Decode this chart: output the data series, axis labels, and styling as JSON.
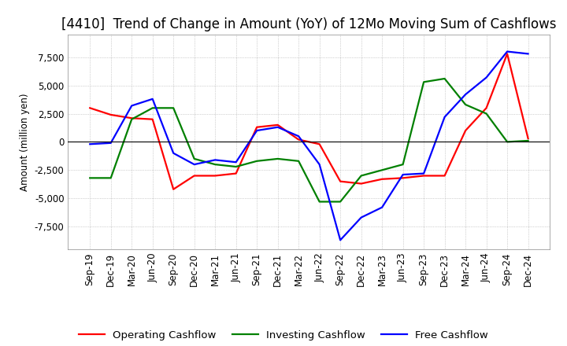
{
  "title": "[4410]  Trend of Change in Amount (YoY) of 12Mo Moving Sum of Cashflows",
  "ylabel": "Amount (million yen)",
  "ylim": [
    -9500,
    9500
  ],
  "yticks": [
    -7500,
    -5000,
    -2500,
    0,
    2500,
    5000,
    7500
  ],
  "x_labels": [
    "Sep-19",
    "Dec-19",
    "Mar-20",
    "Jun-20",
    "Sep-20",
    "Dec-20",
    "Mar-21",
    "Jun-21",
    "Sep-21",
    "Dec-21",
    "Mar-22",
    "Jun-22",
    "Sep-22",
    "Dec-22",
    "Mar-23",
    "Jun-23",
    "Sep-23",
    "Dec-23",
    "Mar-24",
    "Jun-24",
    "Sep-24",
    "Dec-24"
  ],
  "operating": [
    3000,
    2400,
    2100,
    2000,
    -4200,
    -3000,
    -3000,
    -2800,
    1300,
    1500,
    200,
    -200,
    -3500,
    -3700,
    -3300,
    -3200,
    -3000,
    -3000,
    1000,
    3000,
    7800,
    300
  ],
  "investing": [
    -3200,
    -3200,
    2000,
    3000,
    3000,
    -1500,
    -2000,
    -2200,
    -1700,
    -1500,
    -1700,
    -5300,
    -5300,
    -3000,
    -2500,
    -2000,
    5300,
    5600,
    3300,
    2500,
    0,
    100
  ],
  "free": [
    -200,
    -100,
    3200,
    3800,
    -1000,
    -2000,
    -1600,
    -1800,
    1000,
    1300,
    500,
    -2000,
    -8700,
    -6700,
    -5800,
    -2900,
    -2800,
    2200,
    4200,
    5700,
    8000,
    7800
  ],
  "operating_color": "#ff0000",
  "investing_color": "#008000",
  "free_color": "#0000ff",
  "background_color": "#ffffff",
  "grid_color": "#aaaaaa",
  "title_fontsize": 12,
  "legend_fontsize": 9.5,
  "axis_fontsize": 8.5
}
